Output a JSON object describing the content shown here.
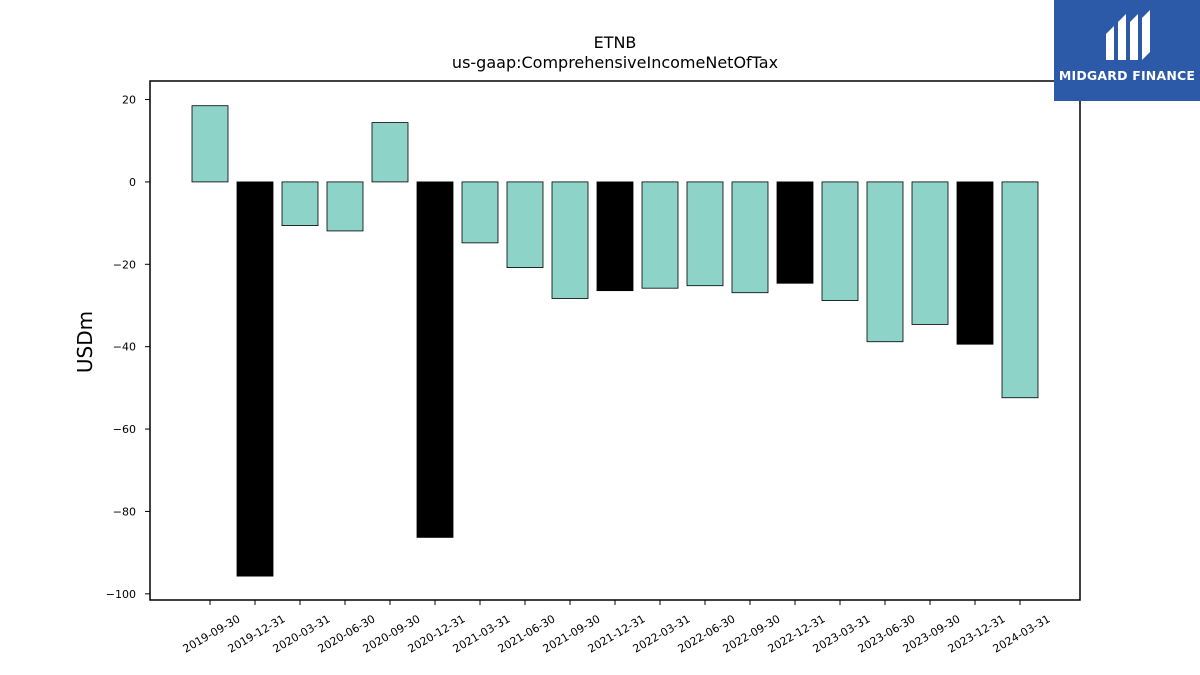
{
  "chart_data": {
    "type": "bar",
    "title": "ETNB",
    "subtitle": "us-gaap:ComprehensiveIncomeNetOfTax",
    "xlabel": "",
    "ylabel": "USDm",
    "ylim": [
      -101.5,
      24.5
    ],
    "yticks": [
      20,
      0,
      -20,
      -40,
      -60,
      -80,
      -100
    ],
    "ytick_labels": [
      "20",
      "0",
      "−20",
      "−40",
      "−60",
      "−80",
      "−100"
    ],
    "categories": [
      "2019-09-30",
      "2019-12-31",
      "2020-03-31",
      "2020-06-30",
      "2020-09-30",
      "2020-12-31",
      "2021-03-31",
      "2021-06-30",
      "2021-09-30",
      "2021-12-31",
      "2022-03-31",
      "2022-06-30",
      "2022-09-30",
      "2022-12-31",
      "2023-03-31",
      "2023-06-30",
      "2023-09-30",
      "2023-12-31",
      "2024-03-31"
    ],
    "values": [
      18.5,
      -95.7,
      -10.6,
      -11.9,
      14.4,
      -86.3,
      -14.8,
      -20.8,
      -28.3,
      -26.4,
      -25.8,
      -25.2,
      -26.9,
      -24.6,
      -28.8,
      -38.8,
      -34.6,
      -39.4,
      -52.4
    ],
    "bar_colors": [
      "#8dd3c7",
      "#000000",
      "#8dd3c7",
      "#8dd3c7",
      "#8dd3c7",
      "#000000",
      "#8dd3c7",
      "#8dd3c7",
      "#8dd3c7",
      "#000000",
      "#8dd3c7",
      "#8dd3c7",
      "#8dd3c7",
      "#000000",
      "#8dd3c7",
      "#8dd3c7",
      "#8dd3c7",
      "#000000",
      "#8dd3c7"
    ],
    "grid": false,
    "legend": "none"
  },
  "logo": {
    "text": "MIDGARD FINANCE",
    "background": "#2d5aa8"
  }
}
